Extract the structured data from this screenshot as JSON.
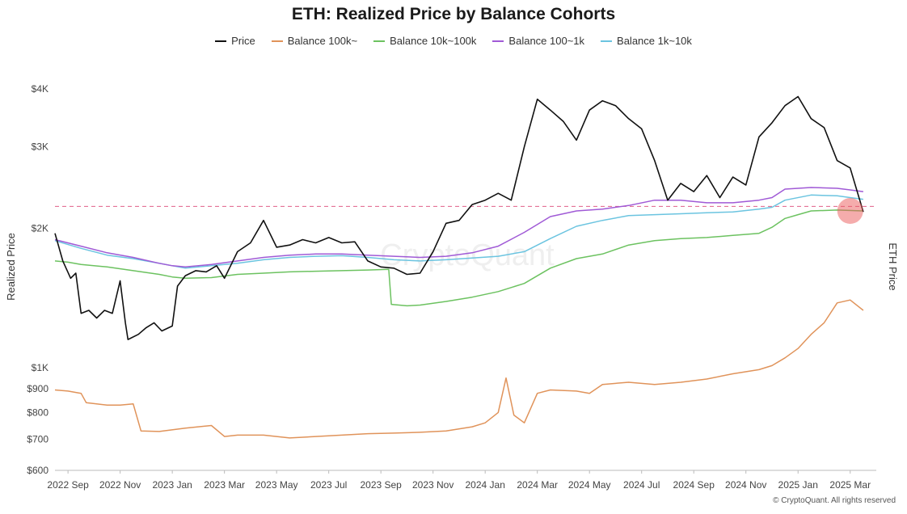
{
  "chart_data": {
    "type": "line",
    "title": "ETH: Realized Price by Balance Cohorts",
    "ylabel": "Realized Price",
    "y2label": "ETH Price",
    "watermark": "CryptoQuant",
    "copyright": "© CryptoQuant. All rights reserved",
    "yscale": "log",
    "ylim": [
      600,
      4300
    ],
    "yticks": [
      {
        "value": 600,
        "label": "$600"
      },
      {
        "value": 700,
        "label": "$700"
      },
      {
        "value": 800,
        "label": "$800"
      },
      {
        "value": 900,
        "label": "$900"
      },
      {
        "value": 1000,
        "label": "$1K"
      },
      {
        "value": 2000,
        "label": "$2K"
      },
      {
        "value": 3000,
        "label": "$3K"
      },
      {
        "value": 4000,
        "label": "$4K"
      }
    ],
    "xlim": [
      0,
      31.5
    ],
    "xticks": [
      {
        "x": 0.5,
        "label": "2022 Sep"
      },
      {
        "x": 2.5,
        "label": "2022 Nov"
      },
      {
        "x": 4.5,
        "label": "2023 Jan"
      },
      {
        "x": 6.5,
        "label": "2023 Mar"
      },
      {
        "x": 8.5,
        "label": "2023 May"
      },
      {
        "x": 10.5,
        "label": "2023 Jul"
      },
      {
        "x": 12.5,
        "label": "2023 Sep"
      },
      {
        "x": 14.5,
        "label": "2023 Nov"
      },
      {
        "x": 16.5,
        "label": "2024 Jan"
      },
      {
        "x": 18.5,
        "label": "2024 Mar"
      },
      {
        "x": 20.5,
        "label": "2024 May"
      },
      {
        "x": 22.5,
        "label": "2024 Jul"
      },
      {
        "x": 24.5,
        "label": "2024 Sep"
      },
      {
        "x": 26.5,
        "label": "2024 Nov"
      },
      {
        "x": 28.5,
        "label": "2025 Jan"
      },
      {
        "x": 30.5,
        "label": "2025 Mar"
      }
    ],
    "x_unit": "months since 2022-09-01",
    "reference_line": {
      "value": 2230,
      "style": "dashed",
      "color": "#e0608a"
    },
    "highlight": {
      "x": 30.5,
      "y": 2180,
      "color": "#ec5a5a"
    },
    "series": [
      {
        "name": "Price",
        "color": "#111111",
        "points": [
          [
            0,
            1950
          ],
          [
            0.3,
            1700
          ],
          [
            0.6,
            1560
          ],
          [
            0.8,
            1600
          ],
          [
            1.0,
            1310
          ],
          [
            1.3,
            1330
          ],
          [
            1.6,
            1280
          ],
          [
            1.9,
            1330
          ],
          [
            2.2,
            1310
          ],
          [
            2.5,
            1540
          ],
          [
            2.7,
            1250
          ],
          [
            2.8,
            1150
          ],
          [
            3.2,
            1180
          ],
          [
            3.5,
            1220
          ],
          [
            3.8,
            1250
          ],
          [
            4.1,
            1200
          ],
          [
            4.5,
            1230
          ],
          [
            4.7,
            1500
          ],
          [
            5.0,
            1580
          ],
          [
            5.4,
            1620
          ],
          [
            5.8,
            1610
          ],
          [
            6.2,
            1660
          ],
          [
            6.5,
            1560
          ],
          [
            7.0,
            1780
          ],
          [
            7.5,
            1860
          ],
          [
            8.0,
            2080
          ],
          [
            8.5,
            1820
          ],
          [
            9.0,
            1840
          ],
          [
            9.5,
            1890
          ],
          [
            10.0,
            1860
          ],
          [
            10.5,
            1910
          ],
          [
            11.0,
            1860
          ],
          [
            11.5,
            1870
          ],
          [
            12.0,
            1700
          ],
          [
            12.5,
            1650
          ],
          [
            13.0,
            1640
          ],
          [
            13.5,
            1590
          ],
          [
            14.0,
            1600
          ],
          [
            14.5,
            1780
          ],
          [
            15.0,
            2050
          ],
          [
            15.5,
            2080
          ],
          [
            16.0,
            2250
          ],
          [
            16.5,
            2300
          ],
          [
            17.0,
            2380
          ],
          [
            17.5,
            2300
          ],
          [
            18.0,
            3000
          ],
          [
            18.5,
            3800
          ],
          [
            19.0,
            3600
          ],
          [
            19.5,
            3400
          ],
          [
            20.0,
            3100
          ],
          [
            20.5,
            3600
          ],
          [
            21.0,
            3770
          ],
          [
            21.5,
            3680
          ],
          [
            22.0,
            3450
          ],
          [
            22.5,
            3280
          ],
          [
            23.0,
            2800
          ],
          [
            23.5,
            2300
          ],
          [
            24.0,
            2500
          ],
          [
            24.5,
            2400
          ],
          [
            25.0,
            2600
          ],
          [
            25.5,
            2330
          ],
          [
            26.0,
            2580
          ],
          [
            26.5,
            2480
          ],
          [
            27.0,
            3150
          ],
          [
            27.5,
            3380
          ],
          [
            28.0,
            3680
          ],
          [
            28.5,
            3850
          ],
          [
            29.0,
            3450
          ],
          [
            29.5,
            3300
          ],
          [
            30.0,
            2800
          ],
          [
            30.5,
            2700
          ],
          [
            31.0,
            2170
          ]
        ]
      },
      {
        "name": "Balance 100k~",
        "color": "#e0935a",
        "points": [
          [
            0,
            895
          ],
          [
            0.5,
            890
          ],
          [
            1.0,
            880
          ],
          [
            1.2,
            840
          ],
          [
            2.0,
            830
          ],
          [
            2.5,
            830
          ],
          [
            3.0,
            835
          ],
          [
            3.3,
            730
          ],
          [
            4.0,
            728
          ],
          [
            5.0,
            740
          ],
          [
            6.0,
            750
          ],
          [
            6.5,
            710
          ],
          [
            7.0,
            715
          ],
          [
            8.0,
            715
          ],
          [
            9.0,
            705
          ],
          [
            10.0,
            710
          ],
          [
            11.0,
            715
          ],
          [
            12.0,
            720
          ],
          [
            13.0,
            722
          ],
          [
            14.0,
            725
          ],
          [
            15.0,
            730
          ],
          [
            16.0,
            745
          ],
          [
            16.5,
            760
          ],
          [
            17.0,
            800
          ],
          [
            17.3,
            950
          ],
          [
            17.6,
            790
          ],
          [
            18.0,
            760
          ],
          [
            18.5,
            880
          ],
          [
            19.0,
            895
          ],
          [
            20.0,
            890
          ],
          [
            20.5,
            880
          ],
          [
            21.0,
            920
          ],
          [
            22.0,
            930
          ],
          [
            23.0,
            920
          ],
          [
            24.0,
            930
          ],
          [
            25.0,
            945
          ],
          [
            26.0,
            970
          ],
          [
            27.0,
            990
          ],
          [
            27.5,
            1010
          ],
          [
            28.0,
            1050
          ],
          [
            28.5,
            1100
          ],
          [
            29.0,
            1180
          ],
          [
            29.5,
            1250
          ],
          [
            30.0,
            1380
          ],
          [
            30.5,
            1400
          ],
          [
            31.0,
            1330
          ]
        ]
      },
      {
        "name": "Balance 10k~100k",
        "color": "#6cc260",
        "points": [
          [
            0,
            1700
          ],
          [
            0.5,
            1690
          ],
          [
            1.0,
            1670
          ],
          [
            2.0,
            1650
          ],
          [
            3.0,
            1620
          ],
          [
            4.0,
            1590
          ],
          [
            4.5,
            1570
          ],
          [
            5.0,
            1560
          ],
          [
            6.0,
            1565
          ],
          [
            7.0,
            1590
          ],
          [
            8.0,
            1600
          ],
          [
            9.0,
            1610
          ],
          [
            10.0,
            1615
          ],
          [
            11.0,
            1620
          ],
          [
            12.0,
            1625
          ],
          [
            12.8,
            1630
          ],
          [
            12.9,
            1370
          ],
          [
            13.5,
            1360
          ],
          [
            14.0,
            1365
          ],
          [
            15.0,
            1390
          ],
          [
            16.0,
            1420
          ],
          [
            17.0,
            1460
          ],
          [
            18.0,
            1520
          ],
          [
            19.0,
            1640
          ],
          [
            20.0,
            1720
          ],
          [
            21.0,
            1760
          ],
          [
            22.0,
            1840
          ],
          [
            23.0,
            1880
          ],
          [
            24.0,
            1900
          ],
          [
            25.0,
            1910
          ],
          [
            26.0,
            1930
          ],
          [
            27.0,
            1950
          ],
          [
            27.5,
            2010
          ],
          [
            28.0,
            2100
          ],
          [
            28.5,
            2140
          ],
          [
            29.0,
            2180
          ],
          [
            30.0,
            2190
          ],
          [
            31.0,
            2180
          ]
        ]
      },
      {
        "name": "Balance 100~1k",
        "color": "#a05ad6",
        "points": [
          [
            0,
            1890
          ],
          [
            1.0,
            1830
          ],
          [
            2.0,
            1770
          ],
          [
            3.0,
            1730
          ],
          [
            4.0,
            1680
          ],
          [
            4.5,
            1660
          ],
          [
            5.0,
            1650
          ],
          [
            6.0,
            1670
          ],
          [
            7.0,
            1700
          ],
          [
            8.0,
            1730
          ],
          [
            9.0,
            1750
          ],
          [
            10.0,
            1760
          ],
          [
            11.0,
            1760
          ],
          [
            12.0,
            1750
          ],
          [
            13.0,
            1740
          ],
          [
            14.0,
            1730
          ],
          [
            15.0,
            1740
          ],
          [
            16.0,
            1770
          ],
          [
            17.0,
            1830
          ],
          [
            18.0,
            1960
          ],
          [
            19.0,
            2120
          ],
          [
            20.0,
            2180
          ],
          [
            21.0,
            2200
          ],
          [
            22.0,
            2240
          ],
          [
            23.0,
            2300
          ],
          [
            24.0,
            2300
          ],
          [
            25.0,
            2270
          ],
          [
            26.0,
            2270
          ],
          [
            27.0,
            2300
          ],
          [
            27.5,
            2330
          ],
          [
            28.0,
            2430
          ],
          [
            29.0,
            2450
          ],
          [
            30.0,
            2440
          ],
          [
            30.5,
            2420
          ],
          [
            31.0,
            2400
          ]
        ]
      },
      {
        "name": "Balance 1k~10k",
        "color": "#6bc4e0",
        "points": [
          [
            0,
            1880
          ],
          [
            1.0,
            1810
          ],
          [
            2.0,
            1750
          ],
          [
            3.0,
            1720
          ],
          [
            4.0,
            1680
          ],
          [
            4.5,
            1660
          ],
          [
            5.0,
            1640
          ],
          [
            6.0,
            1660
          ],
          [
            7.0,
            1680
          ],
          [
            8.0,
            1710
          ],
          [
            9.0,
            1730
          ],
          [
            10.0,
            1740
          ],
          [
            11.0,
            1745
          ],
          [
            12.0,
            1730
          ],
          [
            13.0,
            1710
          ],
          [
            14.0,
            1700
          ],
          [
            15.0,
            1710
          ],
          [
            16.0,
            1725
          ],
          [
            17.0,
            1740
          ],
          [
            18.0,
            1780
          ],
          [
            19.0,
            1900
          ],
          [
            20.0,
            2020
          ],
          [
            21.0,
            2080
          ],
          [
            22.0,
            2130
          ],
          [
            23.0,
            2140
          ],
          [
            24.0,
            2150
          ],
          [
            25.0,
            2160
          ],
          [
            26.0,
            2170
          ],
          [
            27.0,
            2200
          ],
          [
            27.5,
            2220
          ],
          [
            28.0,
            2300
          ],
          [
            29.0,
            2360
          ],
          [
            30.0,
            2350
          ],
          [
            30.5,
            2330
          ],
          [
            31.0,
            2310
          ]
        ]
      }
    ]
  }
}
